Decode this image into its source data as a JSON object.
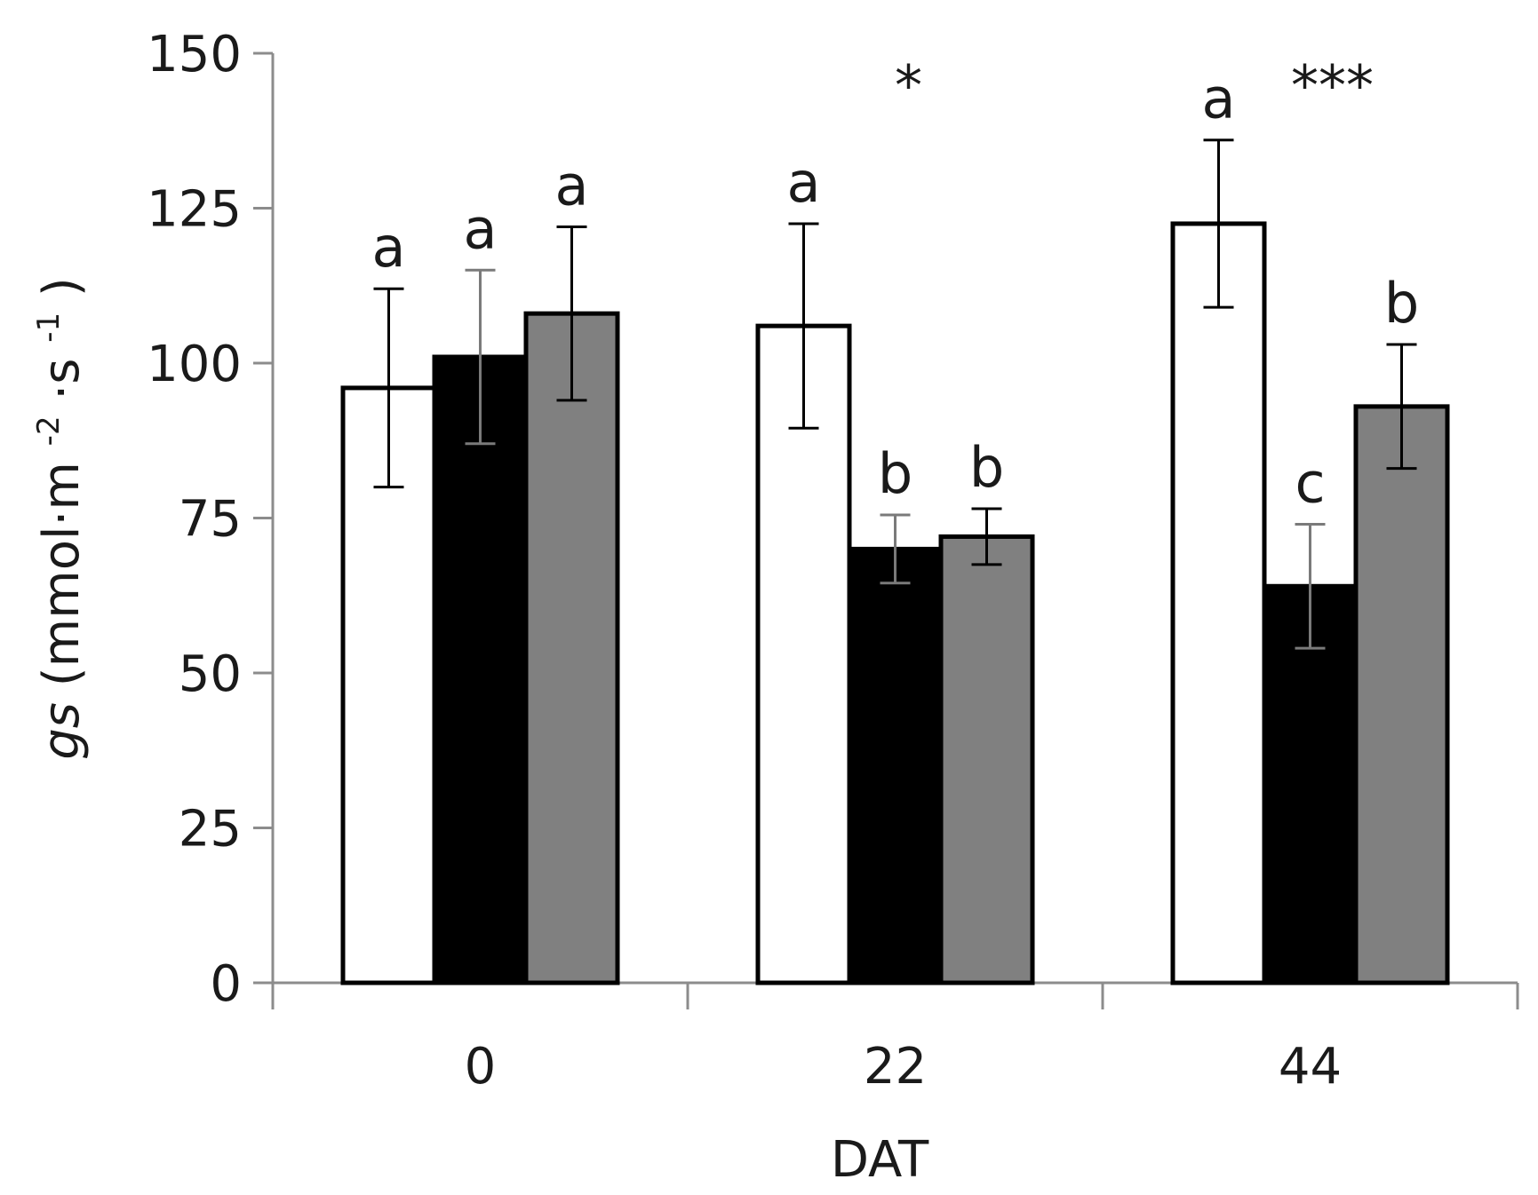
{
  "chart_data": {
    "type": "bar",
    "title": "",
    "xlabel": "DAT",
    "ylabel": {
      "main": "gs",
      "unit_open": "(mmol·m",
      "exp1": "-2",
      "unit_mid": "·s",
      "exp2": "-1",
      "unit_close": ")"
    },
    "ylim": [
      0,
      150
    ],
    "yticks": [
      0,
      25,
      50,
      75,
      100,
      125,
      150
    ],
    "categories": [
      "0",
      "22",
      "44"
    ],
    "legend": "none",
    "series": [
      {
        "name": "white",
        "fill": "#ffffff",
        "values": [
          96,
          106,
          122.5
        ],
        "errors": [
          16,
          16.5,
          13.5
        ],
        "letters": [
          "a",
          "a",
          "a"
        ]
      },
      {
        "name": "black",
        "fill": "#000000",
        "values": [
          101,
          70,
          64
        ],
        "errors": [
          14,
          5.5,
          10
        ],
        "letters": [
          "a",
          "b",
          "c"
        ]
      },
      {
        "name": "gray",
        "fill": "#808080",
        "values": [
          108,
          72,
          93
        ],
        "errors": [
          14,
          4.5,
          10
        ],
        "letters": [
          "a",
          "b",
          "b"
        ]
      }
    ],
    "significance": [
      "",
      "*",
      "***"
    ]
  }
}
